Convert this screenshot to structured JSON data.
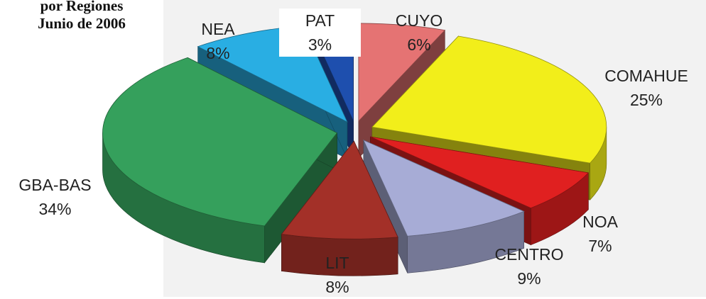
{
  "title": {
    "line1": "por Regiones",
    "line2": "Junio de 2006"
  },
  "chart_data": {
    "type": "pie",
    "title": "por Regiones Junio de 2006",
    "slices": [
      {
        "label": "CUYO",
        "pct": "6%",
        "value": 6,
        "color": "#e57373"
      },
      {
        "label": "COMAHUE",
        "pct": "25%",
        "value": 25,
        "color": "#f2ee1a"
      },
      {
        "label": "NOA",
        "pct": "7%",
        "value": 7,
        "color": "#e02020"
      },
      {
        "label": "CENTRO",
        "pct": "9%",
        "value": 9,
        "color": "#a7acd6"
      },
      {
        "label": "LIT",
        "pct": "8%",
        "value": 8,
        "color": "#a33028"
      },
      {
        "label": "GBA-BAS",
        "pct": "34%",
        "value": 34,
        "color": "#35a05c"
      },
      {
        "label": "NEA",
        "pct": "8%",
        "value": 8,
        "color": "#29aee3"
      },
      {
        "label": "PAT",
        "pct": "3%",
        "value": 3,
        "color": "#1e4fae"
      }
    ],
    "style": "3d-exploded"
  }
}
